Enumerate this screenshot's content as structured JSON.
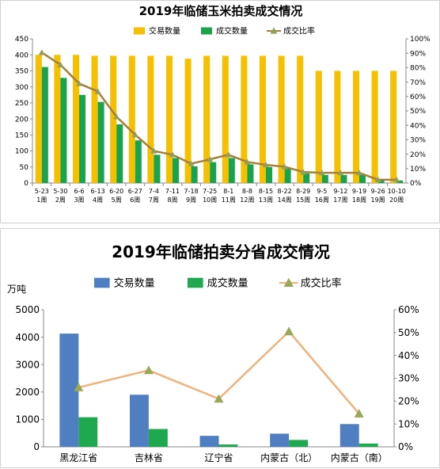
{
  "chart_data": [
    {
      "type": "bar",
      "title": "2019年临储玉米拍卖成交情况",
      "legend_position": "top",
      "categories": [
        [
          "5-23",
          "1周"
        ],
        [
          "5-30",
          "2周"
        ],
        [
          "6-6",
          "3周"
        ],
        [
          "6-13",
          "4周"
        ],
        [
          "6-20",
          "5周"
        ],
        [
          "6-27",
          "6周"
        ],
        [
          "7-4",
          "7周"
        ],
        [
          "7-11",
          "8周"
        ],
        [
          "7-18",
          "9周"
        ],
        [
          "7-25",
          "10周"
        ],
        [
          "8-1",
          "11周"
        ],
        [
          "8-8",
          "12周"
        ],
        [
          "8-15",
          "13周"
        ],
        [
          "8-22",
          "14周"
        ],
        [
          "8-29",
          "15周"
        ],
        [
          "9-5",
          "16周"
        ],
        [
          "9-12",
          "17周"
        ],
        [
          "9-19",
          "18周"
        ],
        [
          "9-26",
          "19周"
        ],
        [
          "10-10",
          "20周"
        ]
      ],
      "series": [
        {
          "name": "交易数量",
          "kind": "bar",
          "axis": "left",
          "color": "#f5c000",
          "values": [
            400,
            400,
            400,
            397,
            397,
            397,
            397,
            397,
            388,
            397,
            397,
            397,
            397,
            397,
            397,
            350,
            350,
            350,
            350,
            350
          ]
        },
        {
          "name": "成交数量",
          "kind": "bar",
          "axis": "left",
          "color": "#1aa34a",
          "values": [
            362,
            328,
            275,
            253,
            183,
            133,
            88,
            78,
            52,
            65,
            78,
            58,
            50,
            45,
            30,
            25,
            25,
            25,
            8,
            8
          ]
        },
        {
          "name": "成交比率",
          "kind": "line",
          "axis": "right",
          "color": "#a57f3a",
          "marker_color": "#8fa05a",
          "values": [
            90.5,
            82,
            69,
            63.5,
            46,
            33.5,
            22.2,
            19.6,
            13.4,
            16.4,
            19.6,
            14.6,
            12.6,
            11.3,
            7.6,
            7.1,
            7.1,
            7.1,
            2.3,
            2.3
          ]
        }
      ],
      "y_left": {
        "min": 0,
        "max": 450,
        "ticks": [
          0,
          50,
          100,
          150,
          200,
          250,
          300,
          350,
          400,
          450
        ]
      },
      "y_right": {
        "min": 0,
        "max": 100,
        "ticks": [
          "0%",
          "10%",
          "20%",
          "30%",
          "40%",
          "50%",
          "60%",
          "70%",
          "80%",
          "90%",
          "100%"
        ]
      },
      "grid": false
    },
    {
      "type": "bar",
      "title": "2019年临储拍卖分省成交情况",
      "unit_label": "万吨",
      "legend_position": "top",
      "categories": [
        "黑龙江省",
        "吉林省",
        "辽宁省",
        "内蒙古（北）",
        "内蒙古（南）"
      ],
      "series": [
        {
          "name": "交易数量",
          "kind": "bar",
          "axis": "left",
          "color": "#4f7fc1",
          "values": [
            4130,
            1900,
            400,
            480,
            830
          ]
        },
        {
          "name": "成交数量",
          "kind": "bar",
          "axis": "left",
          "color": "#1fa84f",
          "values": [
            1080,
            650,
            85,
            250,
            120
          ]
        },
        {
          "name": "成交比率",
          "kind": "line",
          "axis": "right",
          "color": "#f0b27a",
          "marker_color": "#9aa85a",
          "values": [
            26,
            33.5,
            21,
            50.5,
            14.5
          ]
        }
      ],
      "y_left": {
        "min": 0,
        "max": 5000,
        "ticks": [
          0,
          1000,
          2000,
          3000,
          4000,
          5000
        ]
      },
      "y_right": {
        "min": 0,
        "max": 60,
        "ticks": [
          "0%",
          "10%",
          "20%",
          "30%",
          "40%",
          "50%",
          "60%"
        ]
      },
      "grid": false
    }
  ]
}
